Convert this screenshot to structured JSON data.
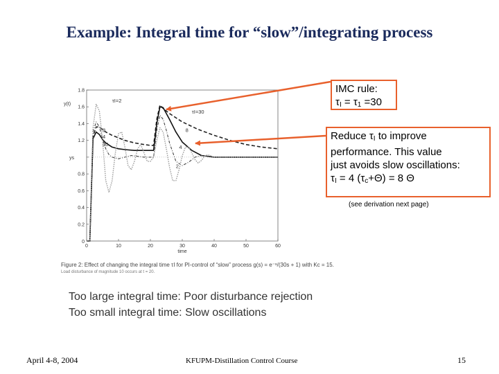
{
  "title": "Example: Integral time for “slow”/integrating process",
  "callout_imc": {
    "line1": "IMC rule:",
    "line2_parts": [
      "τ",
      "I",
      " = τ",
      "1",
      " =30"
    ]
  },
  "callout_reduce": {
    "line1_parts": [
      "Reduce τ",
      "I",
      " to improve"
    ],
    "line2": "performance. This value",
    "line3": "just avoids slow oscillations:",
    "line4_parts": [
      "τ",
      "I",
      " = 4 (τ",
      "c",
      "+Θ) = 8 Θ"
    ]
  },
  "note": "(see derivation next page)",
  "caption": {
    "main": "Figure 2: Effect of changing the integral time τI for PI-control of “slow” process g(s) = e⁻ˢ/(30s + 1) with Kc = 15.",
    "small": "Load disturbance of magnitude 10 occurs at t = 20."
  },
  "statement_1": "Too large integral time:  Poor disturbance rejection",
  "statement_2": "Too small integral time:  Slow oscillations",
  "footer": {
    "date": "April 4-8, 2004",
    "course": "KFUPM-Distillation Control Course",
    "page": "15"
  },
  "chart_data": {
    "type": "line",
    "xlabel": "time",
    "ylabel": "y(t)",
    "xlim": [
      0,
      60
    ],
    "ylim": [
      0,
      1.8
    ],
    "x_ticks": [
      0,
      10,
      20,
      30,
      40,
      50,
      60
    ],
    "y_ticks": [
      0.2,
      0.4,
      0.6,
      0.8,
      1.0,
      1.2,
      1.4,
      1.6,
      1.8
    ],
    "y_tick_labels": [
      "0.2",
      "0.4",
      "0.6",
      "0.8",
      "",
      "1.2",
      "1.4",
      "1.6",
      "1.8"
    ],
    "ys_label": "ys",
    "ys_value": 1.0,
    "annotations": [
      {
        "text": "τI=2",
        "x": 8,
        "y": 1.65
      },
      {
        "text": "τI=30",
        "x": 33,
        "y": 1.52
      },
      {
        "text": "8",
        "x": 31,
        "y": 1.3
      },
      {
        "text": "4",
        "x": 29,
        "y": 1.1
      },
      {
        "text": "2",
        "x": 28,
        "y": 0.87
      },
      {
        "text": "8",
        "x": 5,
        "y": 1.3
      },
      {
        "text": "4",
        "x": 5,
        "y": 1.22
      },
      {
        "text": "30",
        "x": 5,
        "y": 1.13
      }
    ],
    "series": [
      {
        "name": "τI=30",
        "style": "dashed",
        "x": [
          0,
          1,
          2,
          3,
          4,
          5,
          6,
          8,
          10,
          12,
          15,
          18,
          20,
          21,
          22,
          23,
          24,
          26,
          28,
          30,
          35,
          40,
          45,
          50,
          55,
          60
        ],
        "y": [
          0,
          0,
          1.25,
          1.36,
          1.36,
          1.33,
          1.3,
          1.26,
          1.23,
          1.2,
          1.17,
          1.15,
          1.14,
          1.14,
          1.45,
          1.62,
          1.58,
          1.52,
          1.47,
          1.42,
          1.33,
          1.26,
          1.2,
          1.15,
          1.12,
          1.1
        ]
      },
      {
        "name": "τI=8",
        "style": "solid",
        "x": [
          0,
          1,
          2,
          3,
          4,
          5,
          6,
          8,
          10,
          12,
          15,
          18,
          20,
          21,
          22,
          23,
          24,
          26,
          28,
          30,
          33,
          36,
          40,
          45,
          50,
          60
        ],
        "y": [
          0,
          0,
          1.22,
          1.3,
          1.27,
          1.21,
          1.17,
          1.12,
          1.1,
          1.09,
          1.08,
          1.08,
          1.08,
          1.08,
          1.4,
          1.6,
          1.59,
          1.45,
          1.3,
          1.18,
          1.08,
          1.02,
          1.0,
          1.0,
          1.0,
          1.0
        ]
      },
      {
        "name": "τI=4",
        "style": "dash-dot",
        "x": [
          0,
          1,
          2,
          3,
          4,
          5,
          6,
          7,
          8,
          10,
          12,
          14,
          16,
          18,
          20,
          21,
          22,
          23,
          24,
          25,
          26,
          28,
          30,
          32,
          34,
          36,
          40,
          45,
          50,
          60
        ],
        "y": [
          0,
          0,
          1.3,
          1.42,
          1.36,
          1.22,
          1.1,
          1.03,
          1.0,
          0.98,
          1.0,
          1.02,
          1.01,
          1.0,
          1.0,
          1.0,
          1.32,
          1.5,
          1.45,
          1.32,
          1.17,
          0.95,
          0.9,
          0.94,
          1.0,
          1.02,
          1.0,
          1.0,
          1.0,
          1.0
        ]
      },
      {
        "name": "τI=2",
        "style": "dotted",
        "x": [
          0,
          1,
          2,
          3,
          4,
          5,
          6,
          7,
          8,
          9,
          10,
          11,
          12,
          13,
          14,
          15,
          16,
          17,
          18,
          19,
          20,
          21,
          22,
          23,
          24,
          25,
          26,
          27,
          28,
          29,
          30,
          31,
          32,
          33,
          34,
          35,
          36,
          37,
          38,
          40,
          45,
          50,
          60
        ],
        "y": [
          0,
          0,
          1.35,
          1.63,
          1.55,
          1.2,
          0.72,
          0.58,
          0.72,
          1.05,
          1.28,
          1.3,
          1.12,
          0.9,
          0.85,
          0.95,
          1.1,
          1.15,
          1.05,
          0.95,
          0.95,
          1.0,
          1.2,
          1.35,
          1.3,
          1.1,
          0.88,
          0.72,
          0.72,
          0.85,
          1.02,
          1.12,
          1.12,
          1.05,
          0.97,
          0.93,
          0.96,
          1.01,
          1.03,
          1.0,
          1.0,
          1.0,
          1.0
        ]
      }
    ]
  },
  "colors": {
    "title": "#1a2a5c",
    "callout_border": "#e8602c",
    "arrow": "#e8602c"
  }
}
